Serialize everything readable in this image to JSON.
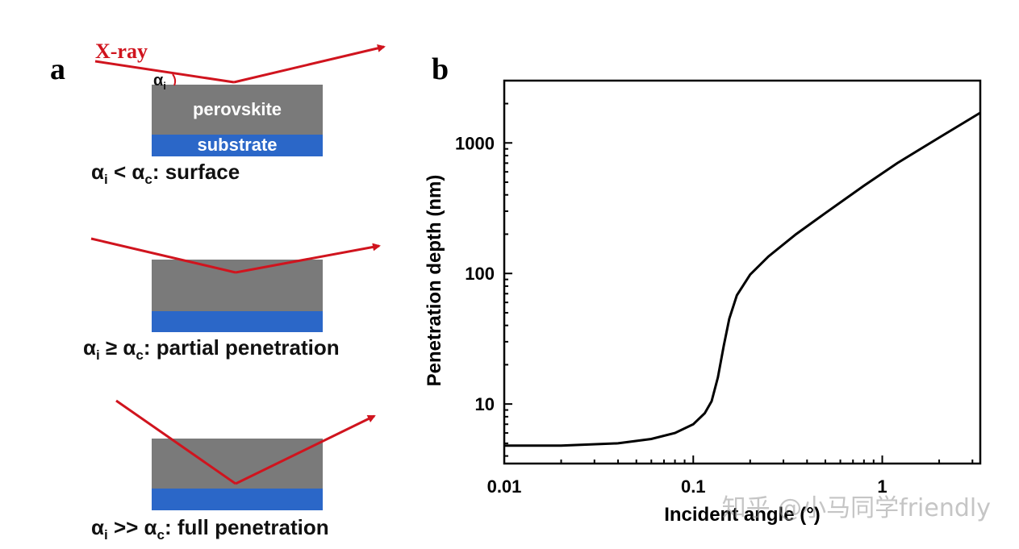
{
  "panel_a": {
    "letter": "a",
    "xray_label": "X-ray",
    "angle_symbol": "α",
    "angle_sub": "i",
    "layer_top": "perovskite",
    "layer_bottom": "substrate",
    "cases": [
      {
        "a": "α",
        "i": "i",
        "op": " < α",
        "c": "c",
        "desc": ": surface"
      },
      {
        "a": "α",
        "i": "i",
        "op": " ≥ α",
        "c": "c",
        "desc": ": partial penetration"
      },
      {
        "a": "α",
        "i": "i",
        "op": " >> α",
        "c": "c",
        "desc": ": full penetration"
      }
    ],
    "colors": {
      "beam": "#d0141e",
      "perovskite": "#7a7a7a",
      "substrate": "#2b67c8"
    }
  },
  "panel_b": {
    "letter": "b",
    "watermark": "知乎 @小马同学friendly"
  },
  "chart_data": {
    "type": "line",
    "xlabel": "Incident angle (°)",
    "ylabel": "Penetration depth (nm)",
    "xscale": "log",
    "yscale": "log",
    "xlim": [
      0.01,
      3.3
    ],
    "ylim": [
      3.5,
      3000
    ],
    "xticks": [
      0.01,
      0.1,
      1
    ],
    "xtick_labels": [
      "0.01",
      "0.1",
      "1"
    ],
    "yticks": [
      10,
      100,
      1000
    ],
    "ytick_labels": [
      "10",
      "100",
      "1000"
    ],
    "grid": false,
    "series": [
      {
        "color": "#000000",
        "x": [
          0.01,
          0.02,
          0.04,
          0.06,
          0.08,
          0.1,
          0.115,
          0.125,
          0.135,
          0.145,
          0.155,
          0.17,
          0.2,
          0.25,
          0.35,
          0.5,
          0.8,
          1.2,
          2.0,
          3.3
        ],
        "y": [
          4.8,
          4.8,
          5.0,
          5.4,
          6.0,
          7.0,
          8.5,
          10.5,
          16,
          28,
          45,
          68,
          98,
          135,
          200,
          290,
          470,
          700,
          1100,
          1700
        ]
      }
    ]
  }
}
